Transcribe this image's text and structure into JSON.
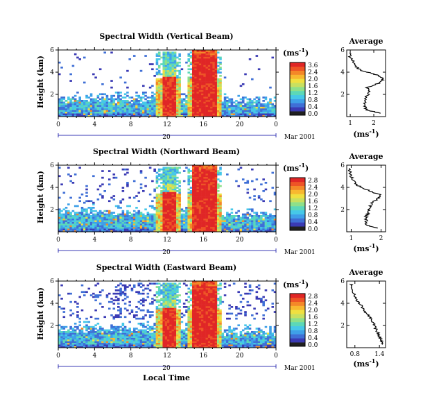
{
  "colors": {
    "colorbar": [
      "#202020",
      "#3a3ab4",
      "#3f6fd6",
      "#3fa0e8",
      "#46c8e8",
      "#5cd8b8",
      "#8ee08a",
      "#c8e060",
      "#f0e040",
      "#f8b830",
      "#f48828",
      "#ee5426",
      "#e02626"
    ]
  },
  "xaxis_label": "Local Time",
  "chart_data": [
    {
      "type": "heatmap",
      "panel": "vertical",
      "title": "Spectral Width (Vertical Beam)",
      "ylabel": "Height (km)",
      "y_ticks": [
        "6",
        "4",
        "2"
      ],
      "ylim": [
        0,
        6
      ],
      "x_ticks": [
        "0",
        "4",
        "8",
        "12",
        "16",
        "20",
        "0"
      ],
      "xlim": [
        0,
        24
      ],
      "date_day": "20",
      "date_month": "Mar 2001",
      "colorbar": {
        "unit": "(ms",
        "exp": "-1",
        "close": ")",
        "labels": [
          "3.6",
          "2.4",
          "2.0",
          "1.6",
          "1.2",
          "0.8",
          "0.4",
          "0.0"
        ]
      },
      "average": {
        "title": "Average",
        "xlabel_unit": "(ms",
        "xlabel_exp": "-1",
        "xlabel_close": ")",
        "x_ticks": [
          "1",
          "2"
        ],
        "xlim": [
          0.85,
          2.5
        ],
        "y_ticks": [
          "6",
          "4",
          "2"
        ],
        "ylim": [
          0,
          6
        ],
        "profile": [
          [
            0.3,
            2.3
          ],
          [
            0.6,
            1.7
          ],
          [
            1.0,
            1.6
          ],
          [
            1.4,
            1.6
          ],
          [
            1.8,
            1.7
          ],
          [
            2.2,
            1.8
          ],
          [
            2.6,
            1.7
          ],
          [
            3.0,
            2.2
          ],
          [
            3.3,
            2.4
          ],
          [
            3.6,
            2.3
          ],
          [
            3.9,
            1.9
          ],
          [
            4.2,
            1.4
          ],
          [
            4.6,
            1.2
          ],
          [
            5.0,
            1.1
          ],
          [
            5.4,
            1.0
          ],
          [
            5.8,
            1.0
          ]
        ]
      },
      "features": {
        "low_layer_top": 1.5,
        "plume_height": 5.8,
        "low_dots": 0.1
      }
    },
    {
      "type": "heatmap",
      "panel": "northward",
      "title": "Spectral Width (Northward Beam)",
      "ylabel": "Height (km)",
      "y_ticks": [
        "6",
        "4",
        "2"
      ],
      "ylim": [
        0,
        6
      ],
      "x_ticks": [
        "0",
        "4",
        "8",
        "12",
        "16",
        "20",
        "0"
      ],
      "xlim": [
        0,
        24
      ],
      "date_day": "20",
      "date_month": "Mar 2001",
      "colorbar": {
        "unit": "(ms",
        "exp": "-1",
        "close": ")",
        "labels": [
          "2.8",
          "2.4",
          "2.0",
          "1.6",
          "1.2",
          "0.8",
          "0.4",
          "0.0"
        ]
      },
      "average": {
        "title": "Average",
        "xlabel_unit": "(ms",
        "xlabel_exp": "-1",
        "xlabel_close": ")",
        "x_ticks": [
          "1",
          "2"
        ],
        "xlim": [
          0.85,
          2.15
        ],
        "y_ticks": [
          "6",
          "4",
          "2"
        ],
        "ylim": [
          0,
          6
        ],
        "profile": [
          [
            0.3,
            1.9
          ],
          [
            0.6,
            1.5
          ],
          [
            1.0,
            1.5
          ],
          [
            1.4,
            1.5
          ],
          [
            1.8,
            1.6
          ],
          [
            2.2,
            1.6
          ],
          [
            2.6,
            1.7
          ],
          [
            3.0,
            1.9
          ],
          [
            3.3,
            2.0
          ],
          [
            3.6,
            1.7
          ],
          [
            3.9,
            1.4
          ],
          [
            4.2,
            1.2
          ],
          [
            4.6,
            1.1
          ],
          [
            5.0,
            1.0
          ],
          [
            5.4,
            0.95
          ],
          [
            5.8,
            0.95
          ]
        ]
      },
      "features": {
        "low_layer_top": 1.7,
        "plume_height": 5.8,
        "low_dots": 0.25
      }
    },
    {
      "type": "heatmap",
      "panel": "eastward",
      "title": "Spectral Width (Eastward Beam)",
      "ylabel": "Height (km)",
      "y_ticks": [
        "6",
        "4",
        "2"
      ],
      "ylim": [
        0,
        6
      ],
      "x_ticks": [
        "0",
        "4",
        "8",
        "12",
        "16",
        "20",
        "0"
      ],
      "xlim": [
        0,
        24
      ],
      "date_day": "20",
      "date_month": "Mar 2001",
      "colorbar": {
        "unit": "(ms",
        "exp": "-1",
        "close": ")",
        "labels": [
          "2.8",
          "2.4",
          "2.0",
          "1.6",
          "1.2",
          "0.8",
          "0.4",
          "0.0"
        ]
      },
      "average": {
        "title": "Average",
        "xlabel_unit": "(ms",
        "xlabel_exp": "-1",
        "xlabel_close": ")",
        "x_ticks": [
          "0.8",
          "1.4"
        ],
        "xlim": [
          0.6,
          1.55
        ],
        "y_ticks": [
          "6",
          "4",
          "2"
        ],
        "ylim": [
          0,
          6
        ],
        "profile": [
          [
            0.3,
            1.5
          ],
          [
            0.6,
            1.45
          ],
          [
            1.0,
            1.4
          ],
          [
            1.4,
            1.35
          ],
          [
            1.8,
            1.3
          ],
          [
            2.2,
            1.25
          ],
          [
            2.6,
            1.2
          ],
          [
            3.0,
            1.1
          ],
          [
            3.4,
            1.0
          ],
          [
            3.8,
            0.95
          ],
          [
            4.2,
            0.85
          ],
          [
            4.6,
            0.8
          ],
          [
            5.0,
            0.75
          ],
          [
            5.4,
            0.72
          ],
          [
            5.8,
            0.7
          ]
        ]
      },
      "features": {
        "low_layer_top": 1.6,
        "plume_height": 5.8,
        "low_dots": 0.55
      }
    }
  ]
}
